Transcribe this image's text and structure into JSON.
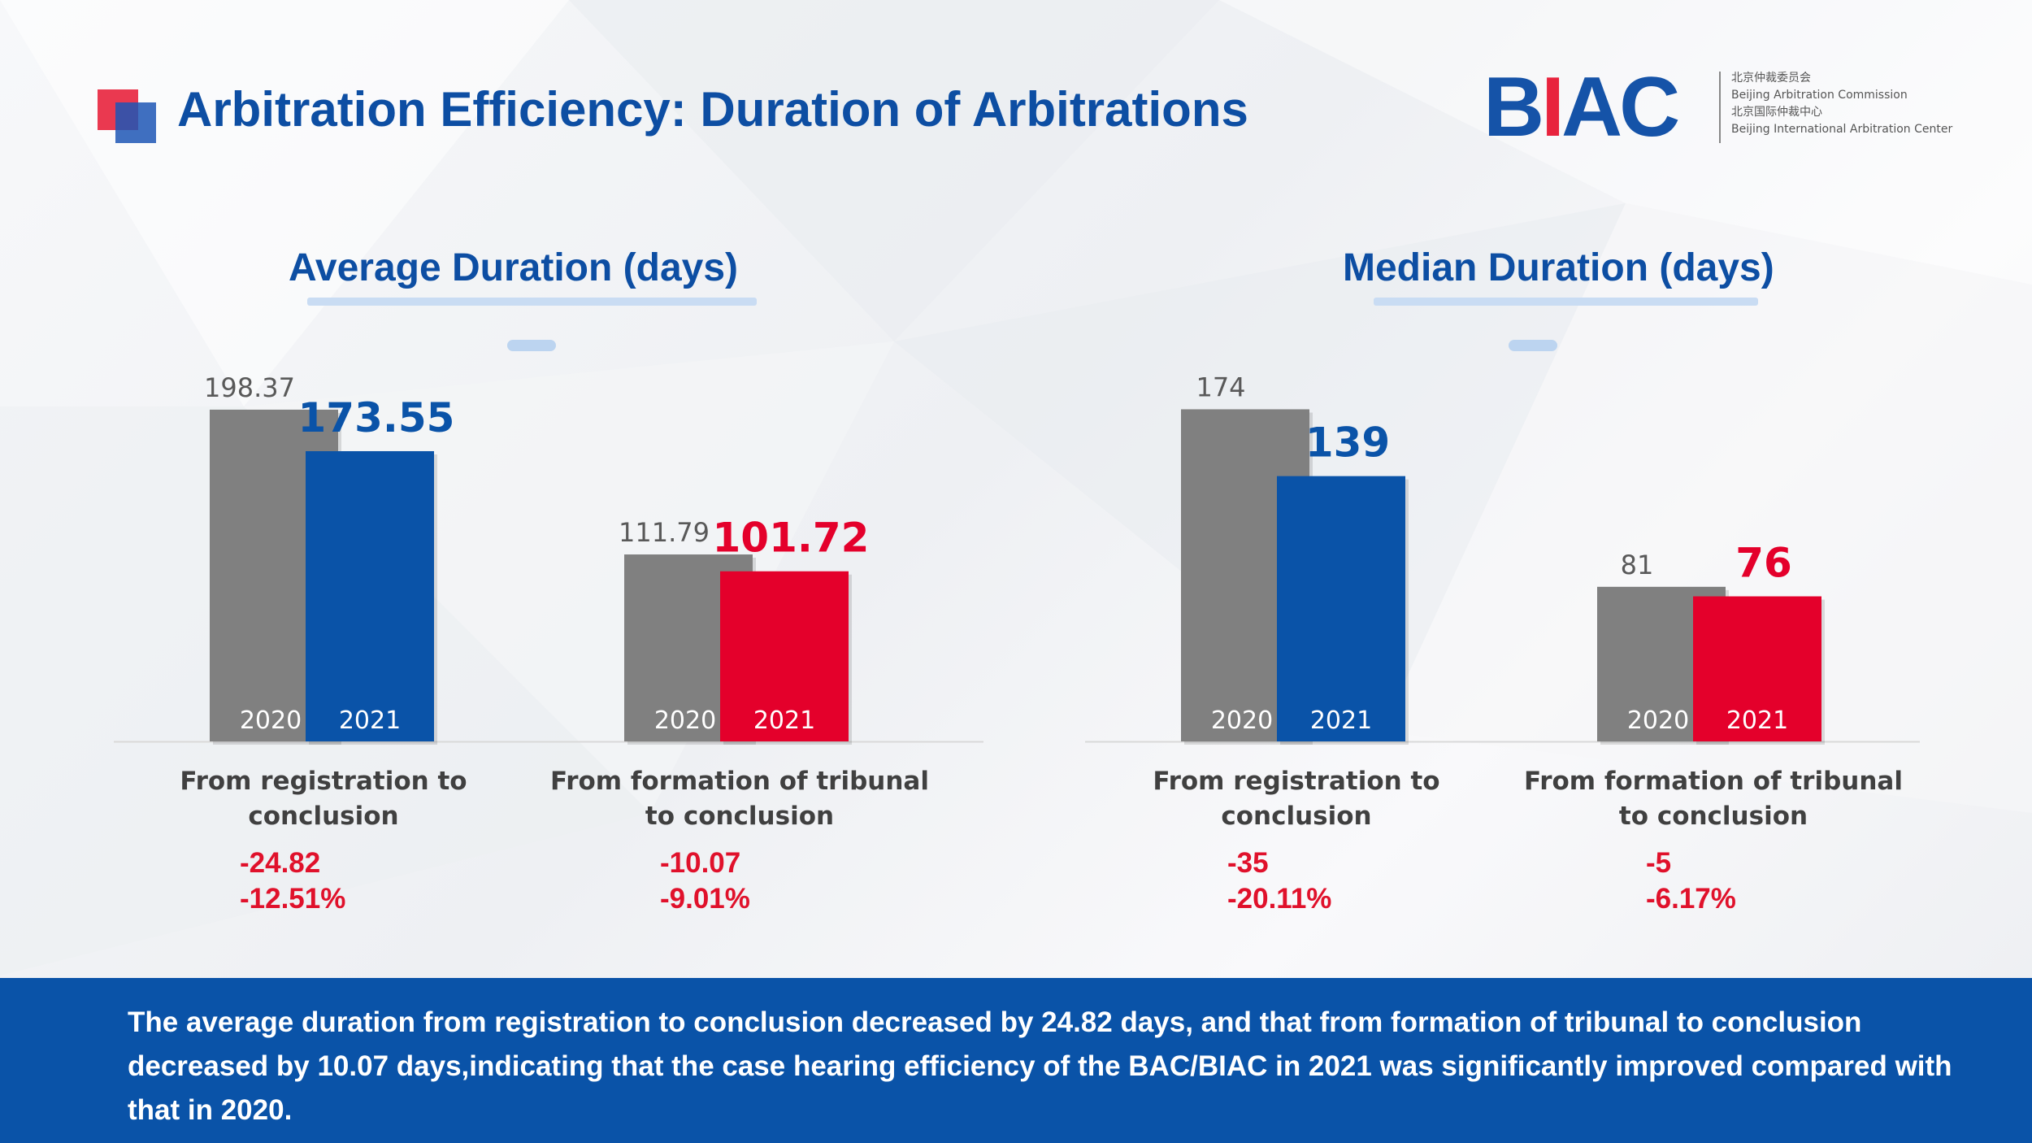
{
  "page": {
    "title": "Arbitration Efficiency: Duration of Arbitrations"
  },
  "logo": {
    "mark": "BIAC",
    "lines": [
      "北京仲裁委员会",
      "Beijing Arbitration Commission",
      "北京国际仲裁中心",
      "Beijing International Arbitration Center"
    ]
  },
  "colors": {
    "gray": "#808080",
    "blue": "#0a53a8",
    "red": "#e4002b",
    "title": "#0d4ea3"
  },
  "chart_data": [
    {
      "type": "bar",
      "title": "Average Duration (days)",
      "categories": [
        "From registration to conclusion",
        "From formation of tribunal to conclusion"
      ],
      "series": [
        {
          "name": "2020",
          "values": [
            198.37,
            111.79
          ]
        },
        {
          "name": "2021",
          "values": [
            173.55,
            101.72
          ]
        }
      ],
      "ylim": [
        0,
        210
      ],
      "changes": [
        {
          "days": "-24.82",
          "percent": "-12.51%"
        },
        {
          "days": "-10.07",
          "percent": "-9.01%"
        }
      ]
    },
    {
      "type": "bar",
      "title": "Median Duration (days)",
      "categories": [
        "From registration to conclusion",
        "From formation of tribunal to conclusion"
      ],
      "series": [
        {
          "name": "2020",
          "values": [
            174,
            81
          ]
        },
        {
          "name": "2021",
          "values": [
            139,
            76
          ]
        }
      ],
      "ylim": [
        0,
        184
      ],
      "changes": [
        {
          "days": "-35",
          "percent": "-20.11%"
        },
        {
          "days": "-5",
          "percent": "-6.17%"
        }
      ]
    }
  ],
  "footer": {
    "text": "The average duration from registration to conclusion decreased by 24.82 days, and that from formation of tribunal to conclusion decreased by 10.07 days,indicating that the case hearing efficiency of the BAC/BIAC in 2021 was significantly improved compared with that in 2020."
  }
}
